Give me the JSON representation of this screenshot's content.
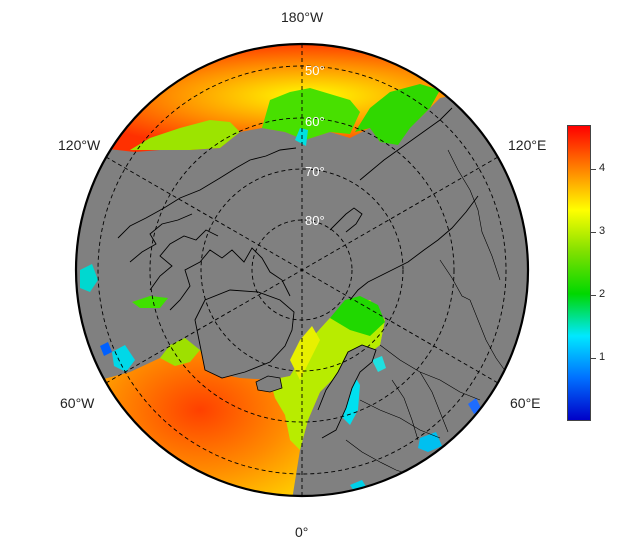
{
  "map": {
    "projection": "north-polar stereographic",
    "colors": {
      "land": "#808080",
      "ocean_outside": "#ffffff",
      "coastline": "#000000",
      "graticule": "#000000"
    },
    "longitude_labels": {
      "top": "180°W",
      "upper_left": "120°W",
      "upper_right": "120°E",
      "lower_left": "60°W",
      "lower_right": "60°E",
      "bottom": "0°"
    },
    "latitude_labels": {
      "lat50": "50°",
      "lat60": "60°",
      "lat70": "70°",
      "lat80": "80°"
    }
  },
  "colorbar": {
    "ticks": [
      "1",
      "2",
      "3",
      "4"
    ],
    "tick_values": [
      1,
      2,
      3,
      4
    ],
    "range": [
      0,
      4.7
    ],
    "colormap": [
      "#0000c8",
      "#0070ff",
      "#00e8ff",
      "#00d800",
      "#7fe000",
      "#ffff00",
      "#ff8000",
      "#ff0000"
    ]
  }
}
